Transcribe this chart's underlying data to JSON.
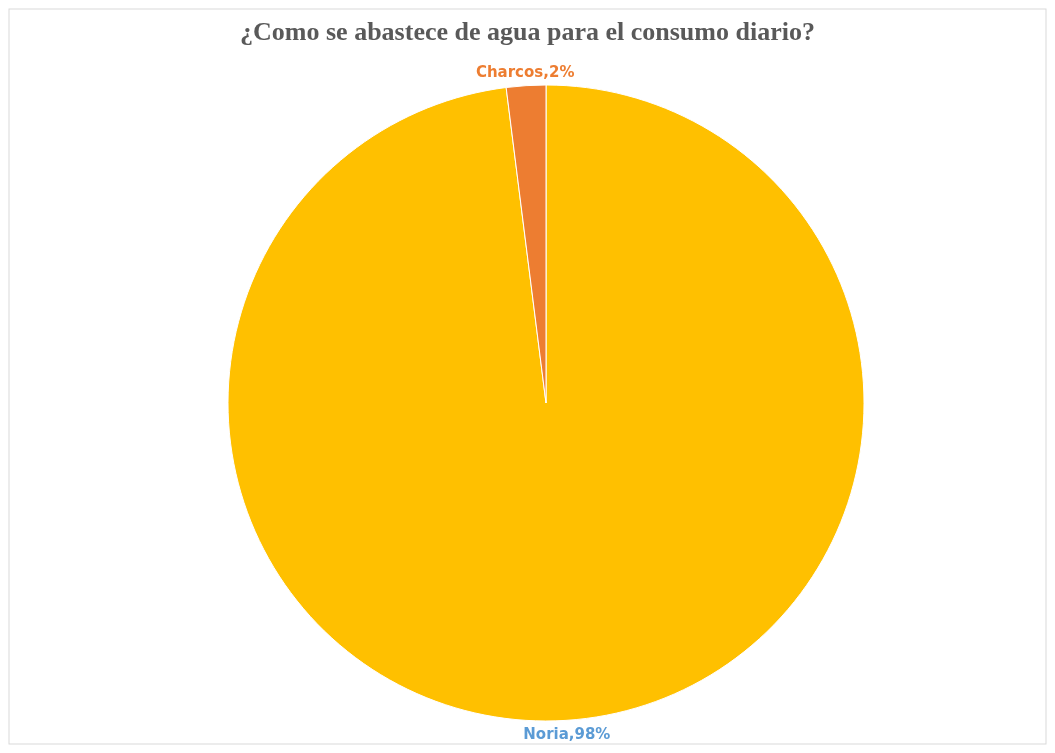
{
  "chart_data": {
    "type": "pie",
    "title": "¿Como se abastece de agua para el consumo diario?",
    "categories": [
      "Noria",
      "Charcos"
    ],
    "values": [
      98,
      2
    ],
    "colors": [
      "#ffc000",
      "#ed7d31"
    ],
    "value_labels": [
      ",98%",
      ",2%"
    ]
  }
}
